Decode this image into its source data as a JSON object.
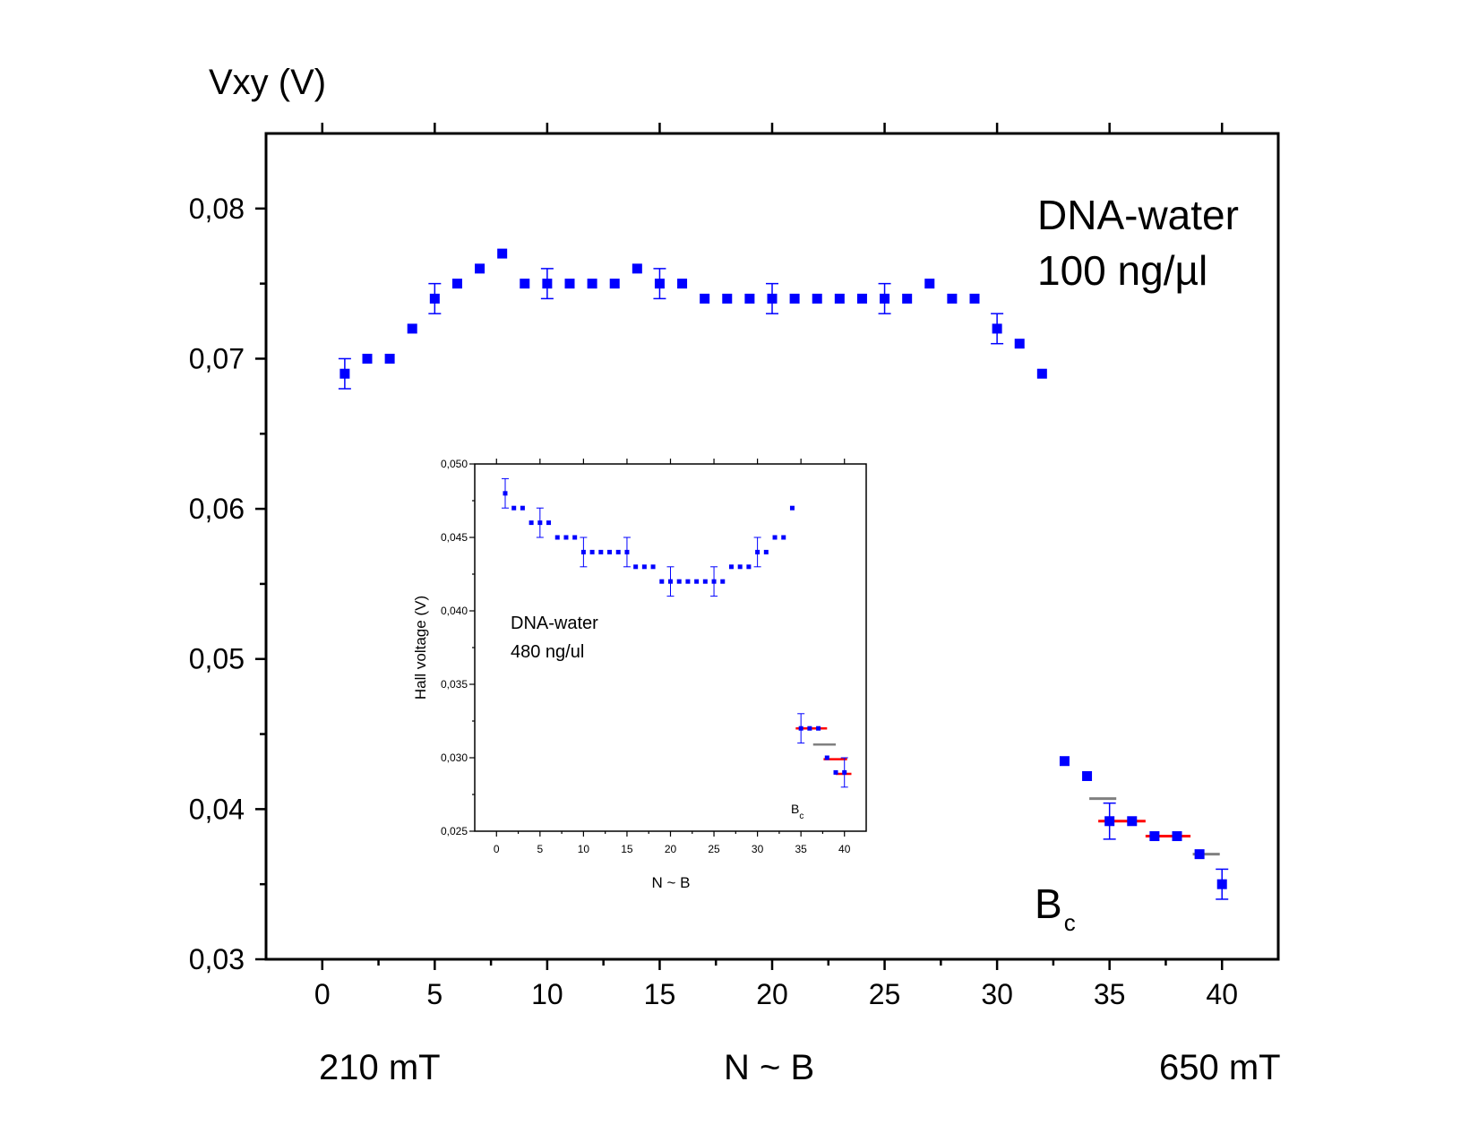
{
  "chart_data": [
    {
      "type": "scatter",
      "title": "",
      "ylabel": "Vxy (V)",
      "xlabel": "N ~ B",
      "x_left_label": "210 mT",
      "x_right_label": "650 mT",
      "xlim": [
        -2.5,
        42.5
      ],
      "ylim": [
        0.03,
        0.085
      ],
      "x_ticks": [
        "0",
        "5",
        "10",
        "15",
        "20",
        "25",
        "30",
        "35",
        "40"
      ],
      "y_ticks": [
        "0,03",
        "0,04",
        "0,05",
        "0,06",
        "0,07",
        "0,08"
      ],
      "annotation_line1": "DNA-water",
      "annotation_line2": "100 ng/µl",
      "annotation_b": "B",
      "annotation_b_sub": "c",
      "marker_color": "#0000ff",
      "series": [
        {
          "name": "Vxy",
          "x": [
            1,
            2,
            3,
            4,
            5,
            6,
            7,
            8,
            9,
            10,
            11,
            12,
            13,
            14,
            15,
            16,
            17,
            18,
            19,
            20,
            21,
            22,
            23,
            24,
            25,
            26,
            27,
            28,
            29,
            30,
            31,
            32,
            33,
            34,
            35,
            36,
            37,
            38,
            39,
            40
          ],
          "y": [
            0.069,
            0.07,
            0.07,
            0.072,
            0.074,
            0.075,
            0.076,
            0.077,
            0.075,
            0.075,
            0.075,
            0.075,
            0.075,
            0.076,
            0.075,
            0.075,
            0.074,
            0.074,
            0.074,
            0.074,
            0.074,
            0.074,
            0.074,
            0.074,
            0.074,
            0.074,
            0.075,
            0.074,
            0.074,
            0.072,
            0.071,
            0.069,
            0.0432,
            0.0422,
            0.0392,
            0.0392,
            0.0382,
            0.0382,
            0.037,
            0.035
          ],
          "error": [
            0.001,
            0,
            0,
            0,
            0.001,
            0,
            0,
            0,
            0,
            0.001,
            0,
            0,
            0,
            0,
            0.001,
            0,
            0,
            0,
            0,
            0.001,
            0,
            0,
            0,
            0,
            0.001,
            0,
            0,
            0,
            0,
            0.001,
            0,
            0,
            0,
            0,
            0.0012,
            0,
            0,
            0,
            0,
            0.001
          ]
        }
      ],
      "steps": [
        {
          "x1": 34.1,
          "x2": 35.3,
          "y": 0.0407,
          "color": "#808080"
        },
        {
          "x1": 34.5,
          "x2": 36.6,
          "y": 0.0392,
          "color": "#ff0000"
        },
        {
          "x1": 36.6,
          "x2": 38.6,
          "y": 0.0382,
          "color": "#ff0000"
        },
        {
          "x1": 38.7,
          "x2": 39.9,
          "y": 0.037,
          "color": "#808080"
        }
      ]
    },
    {
      "type": "scatter",
      "title": "",
      "ylabel": "Hall voltage (V)",
      "xlabel": "N ~ B",
      "xlim": [
        -2.5,
        42.5
      ],
      "ylim": [
        0.025,
        0.05
      ],
      "x_ticks": [
        "0",
        "5",
        "10",
        "15",
        "20",
        "25",
        "30",
        "35",
        "40"
      ],
      "y_ticks": [
        "0,025",
        "0,030",
        "0,035",
        "0,040",
        "0,045",
        "0,050"
      ],
      "annotation_line1": "DNA-water",
      "annotation_line2": "480 ng/ul",
      "annotation_b": "B",
      "annotation_b_sub": "c",
      "marker_color": "#0000ff",
      "series": [
        {
          "name": "Hall voltage",
          "x": [
            1,
            2,
            3,
            4,
            5,
            6,
            7,
            8,
            9,
            10,
            11,
            12,
            13,
            14,
            15,
            16,
            17,
            18,
            19,
            20,
            21,
            22,
            23,
            24,
            25,
            26,
            27,
            28,
            29,
            30,
            31,
            32,
            33,
            34,
            35,
            36,
            37,
            38,
            39,
            40
          ],
          "y": [
            0.048,
            0.047,
            0.047,
            0.046,
            0.046,
            0.046,
            0.045,
            0.045,
            0.045,
            0.044,
            0.044,
            0.044,
            0.044,
            0.044,
            0.044,
            0.043,
            0.043,
            0.043,
            0.042,
            0.042,
            0.042,
            0.042,
            0.042,
            0.042,
            0.042,
            0.042,
            0.043,
            0.043,
            0.043,
            0.044,
            0.044,
            0.045,
            0.045,
            0.047,
            0.032,
            0.032,
            0.032,
            0.03,
            0.029,
            0.029
          ],
          "error": [
            0.001,
            0,
            0,
            0,
            0.001,
            0,
            0,
            0,
            0,
            0.001,
            0,
            0,
            0,
            0,
            0.001,
            0,
            0,
            0,
            0,
            0.001,
            0,
            0,
            0,
            0,
            0.001,
            0,
            0,
            0,
            0,
            0.001,
            0,
            0,
            0,
            0,
            0.001,
            0,
            0,
            0,
            0,
            0.001
          ]
        }
      ],
      "steps": [
        {
          "x1": 34.4,
          "x2": 38.0,
          "y": 0.032,
          "color": "#ff0000"
        },
        {
          "x1": 36.4,
          "x2": 39.0,
          "y": 0.0309,
          "color": "#808080"
        },
        {
          "x1": 37.6,
          "x2": 40.3,
          "y": 0.0299,
          "color": "#ff0000"
        },
        {
          "x1": 39.0,
          "x2": 40.8,
          "y": 0.0289,
          "color": "#ff0000"
        }
      ]
    }
  ]
}
